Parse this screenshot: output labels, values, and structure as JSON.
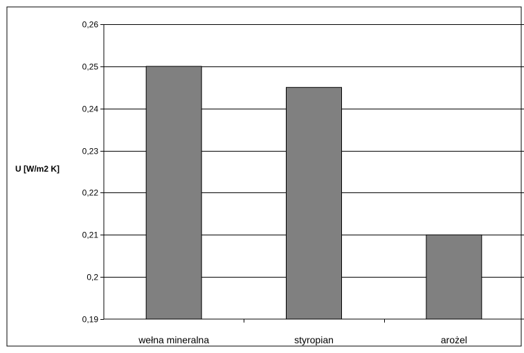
{
  "chart_data": {
    "type": "bar",
    "title": "",
    "xlabel": "",
    "ylabel": "U [W/m2 K]",
    "categories": [
      "wełna mineralna",
      "styropian",
      "arożel"
    ],
    "values": [
      0.25,
      0.245,
      0.21
    ],
    "ylim": [
      0.19,
      0.26
    ],
    "yticks": [
      0.19,
      0.2,
      0.21,
      0.22,
      0.23,
      0.24,
      0.25,
      0.26
    ],
    "ytick_labels": [
      "0,19",
      "0,2",
      "0,21",
      "0,22",
      "0,23",
      "0,24",
      "0,25",
      "0,26"
    ],
    "grid": true,
    "legend": "none",
    "bar_color": "#808080",
    "bar_edge_color": "#000000"
  }
}
